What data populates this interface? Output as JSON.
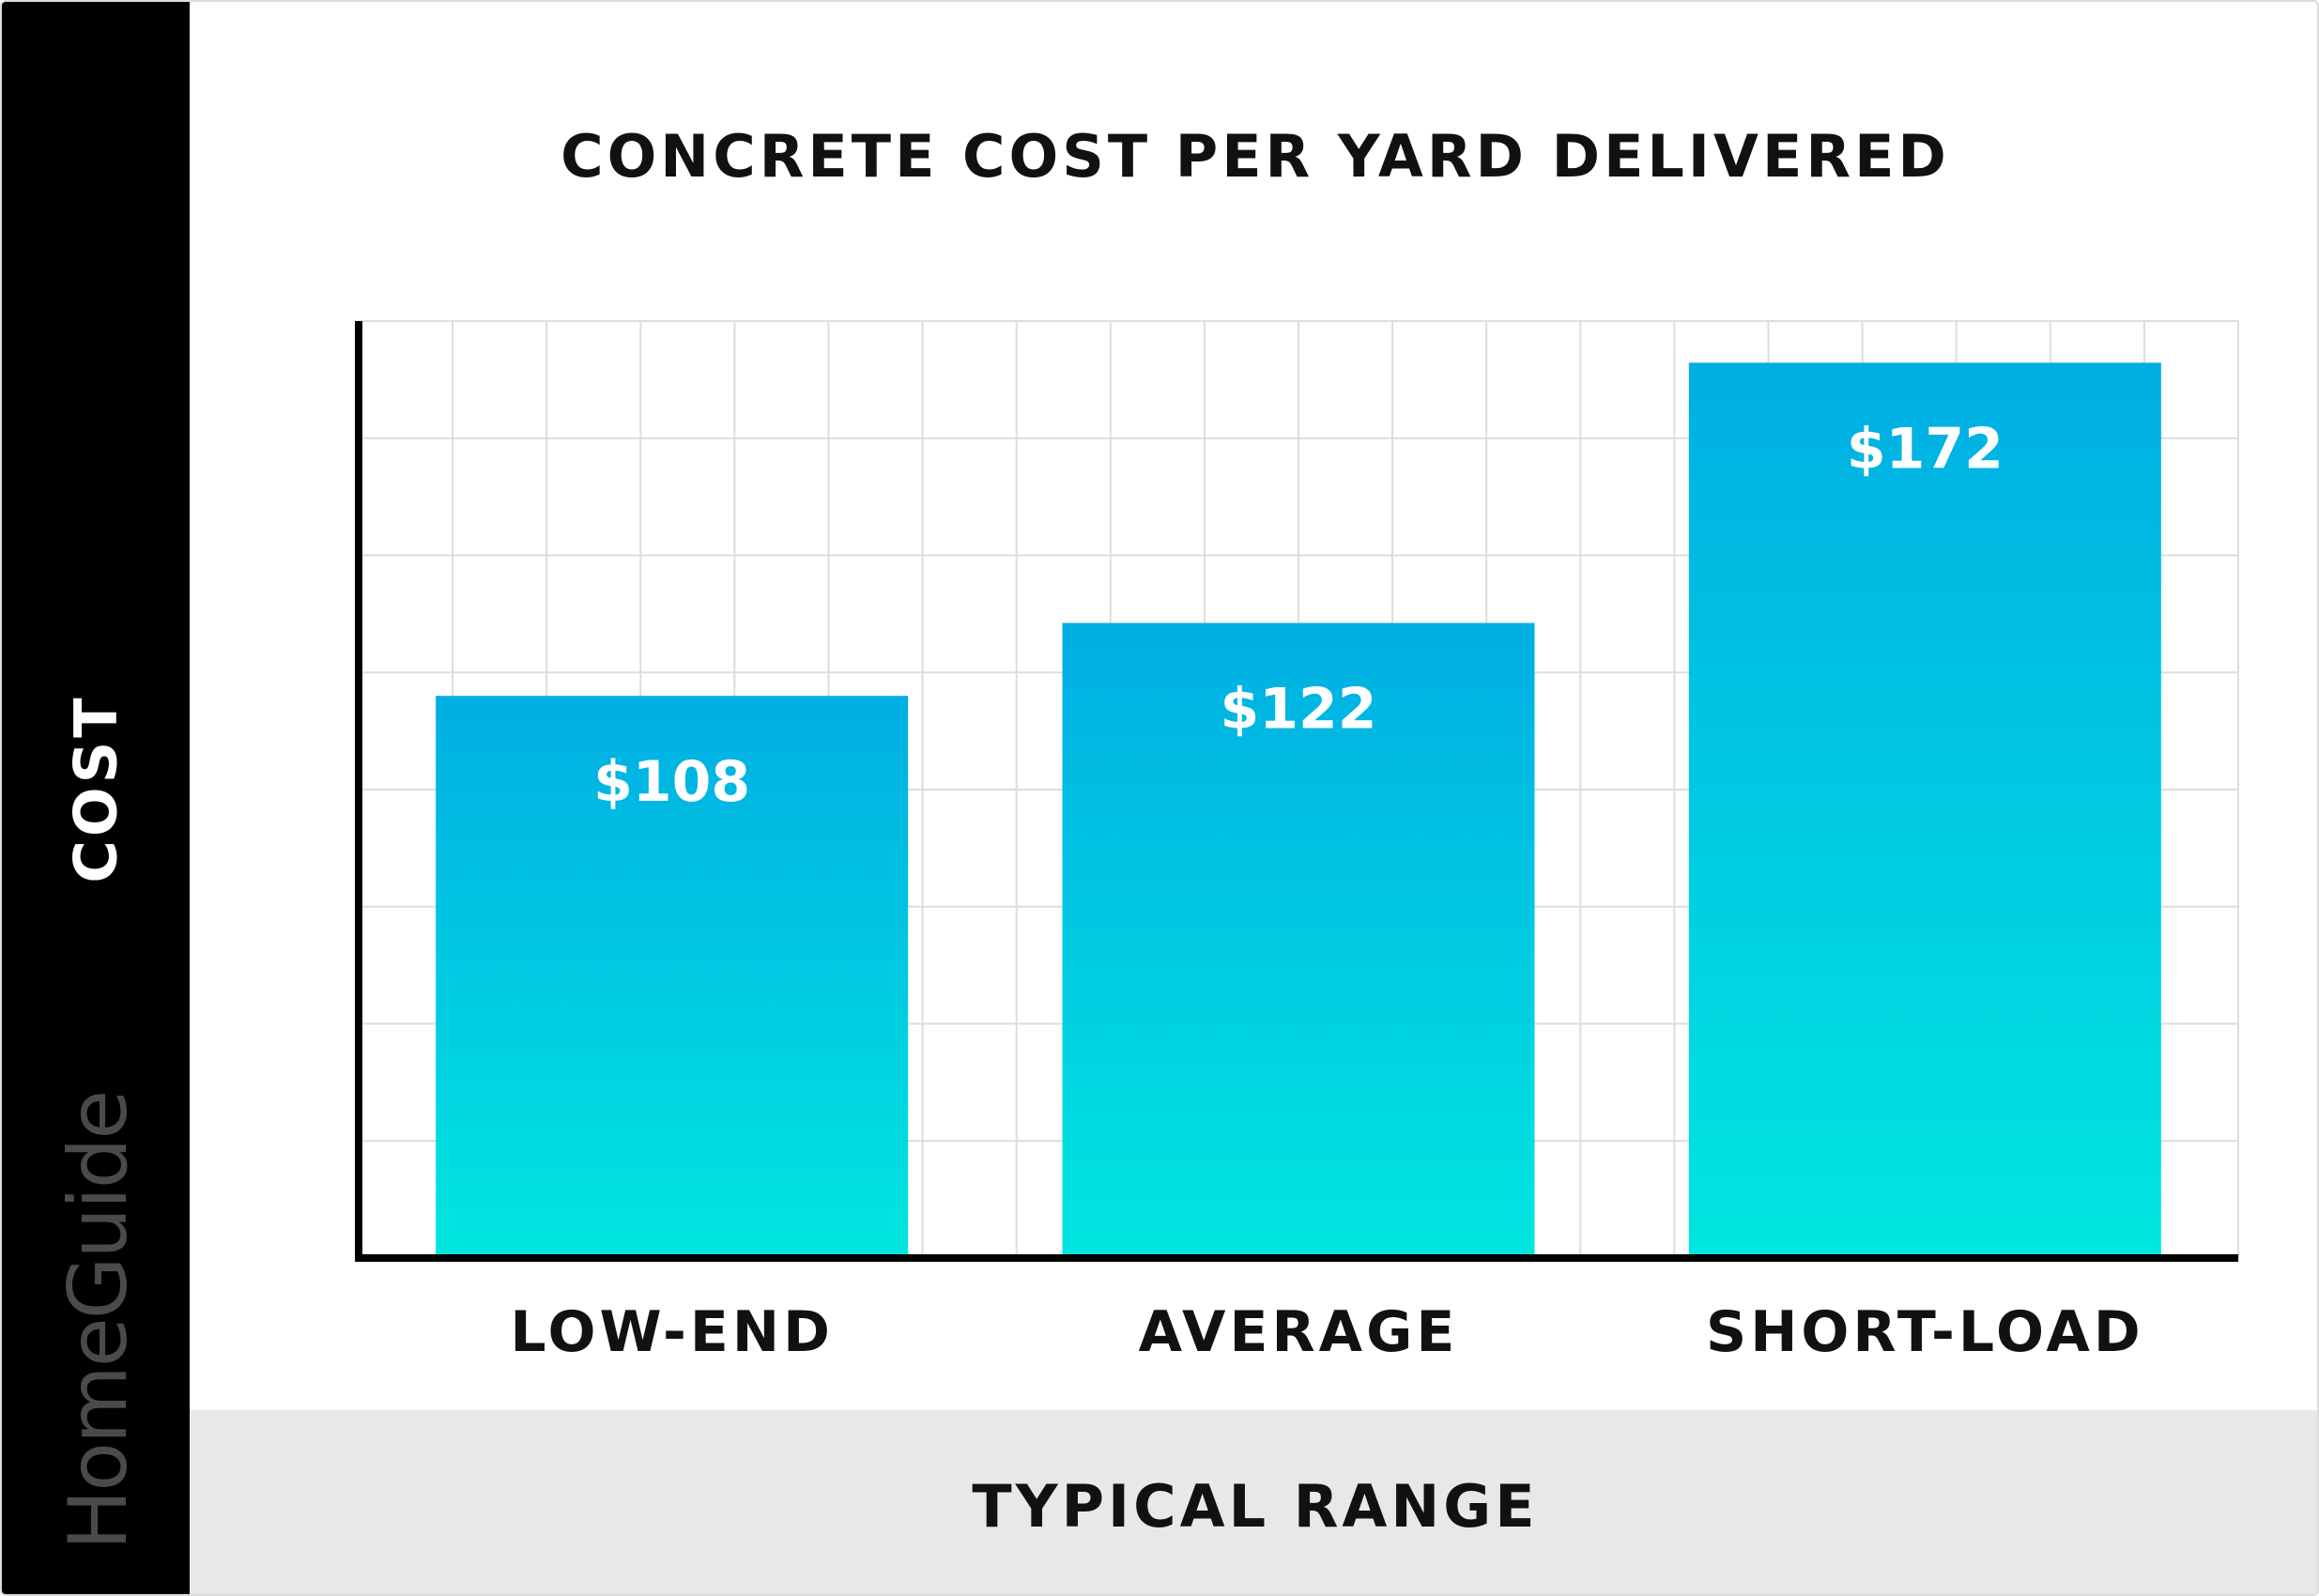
{
  "colors": {
    "bar_top": "#00aee3",
    "bar_bottom": "#00e6e0",
    "grid": "#dddddd",
    "axis": "#000000",
    "footer": "#e8e8e8",
    "sidebar": "#000000"
  },
  "brand": "HomeGuide",
  "chart_data": {
    "type": "bar",
    "title": "CONCRETE COST PER YARD DELIVERED",
    "xlabel": "TYPICAL RANGE",
    "ylabel": "COST",
    "categories": [
      "LOW-END",
      "AVERAGE",
      "SHORT-LOAD"
    ],
    "values": [
      108,
      122,
      172
    ],
    "value_labels": [
      "$108",
      "$122",
      "$172"
    ],
    "ylim": [
      0,
      180
    ],
    "grid": true,
    "legend": "none"
  }
}
